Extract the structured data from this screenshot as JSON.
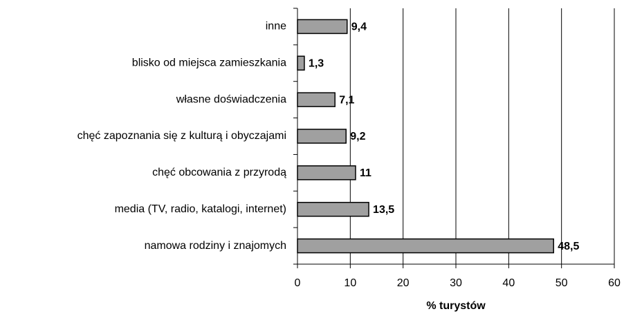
{
  "chart_data": {
    "type": "bar",
    "orientation": "horizontal",
    "categories": [
      "inne",
      "blisko od miejsca zamieszkania",
      "własne doświadczenia",
      "chęć zapoznania się z kulturą i obyczajami",
      "chęć obcowania z przyrodą",
      "media (TV, radio, katalogi, internet)",
      "namowa rodziny i znajomych"
    ],
    "values": [
      9.4,
      1.3,
      7.1,
      9.2,
      11,
      13.5,
      48.5
    ],
    "value_labels": [
      "9,4",
      "1,3",
      "7,1",
      "9,2",
      "11",
      "13,5",
      "48,5"
    ],
    "color": "#a0a0a0",
    "xlabel": "% turystów",
    "xlim": [
      0,
      60
    ],
    "xticks": [
      0,
      10,
      20,
      30,
      40,
      50,
      60
    ],
    "grid": true
  }
}
